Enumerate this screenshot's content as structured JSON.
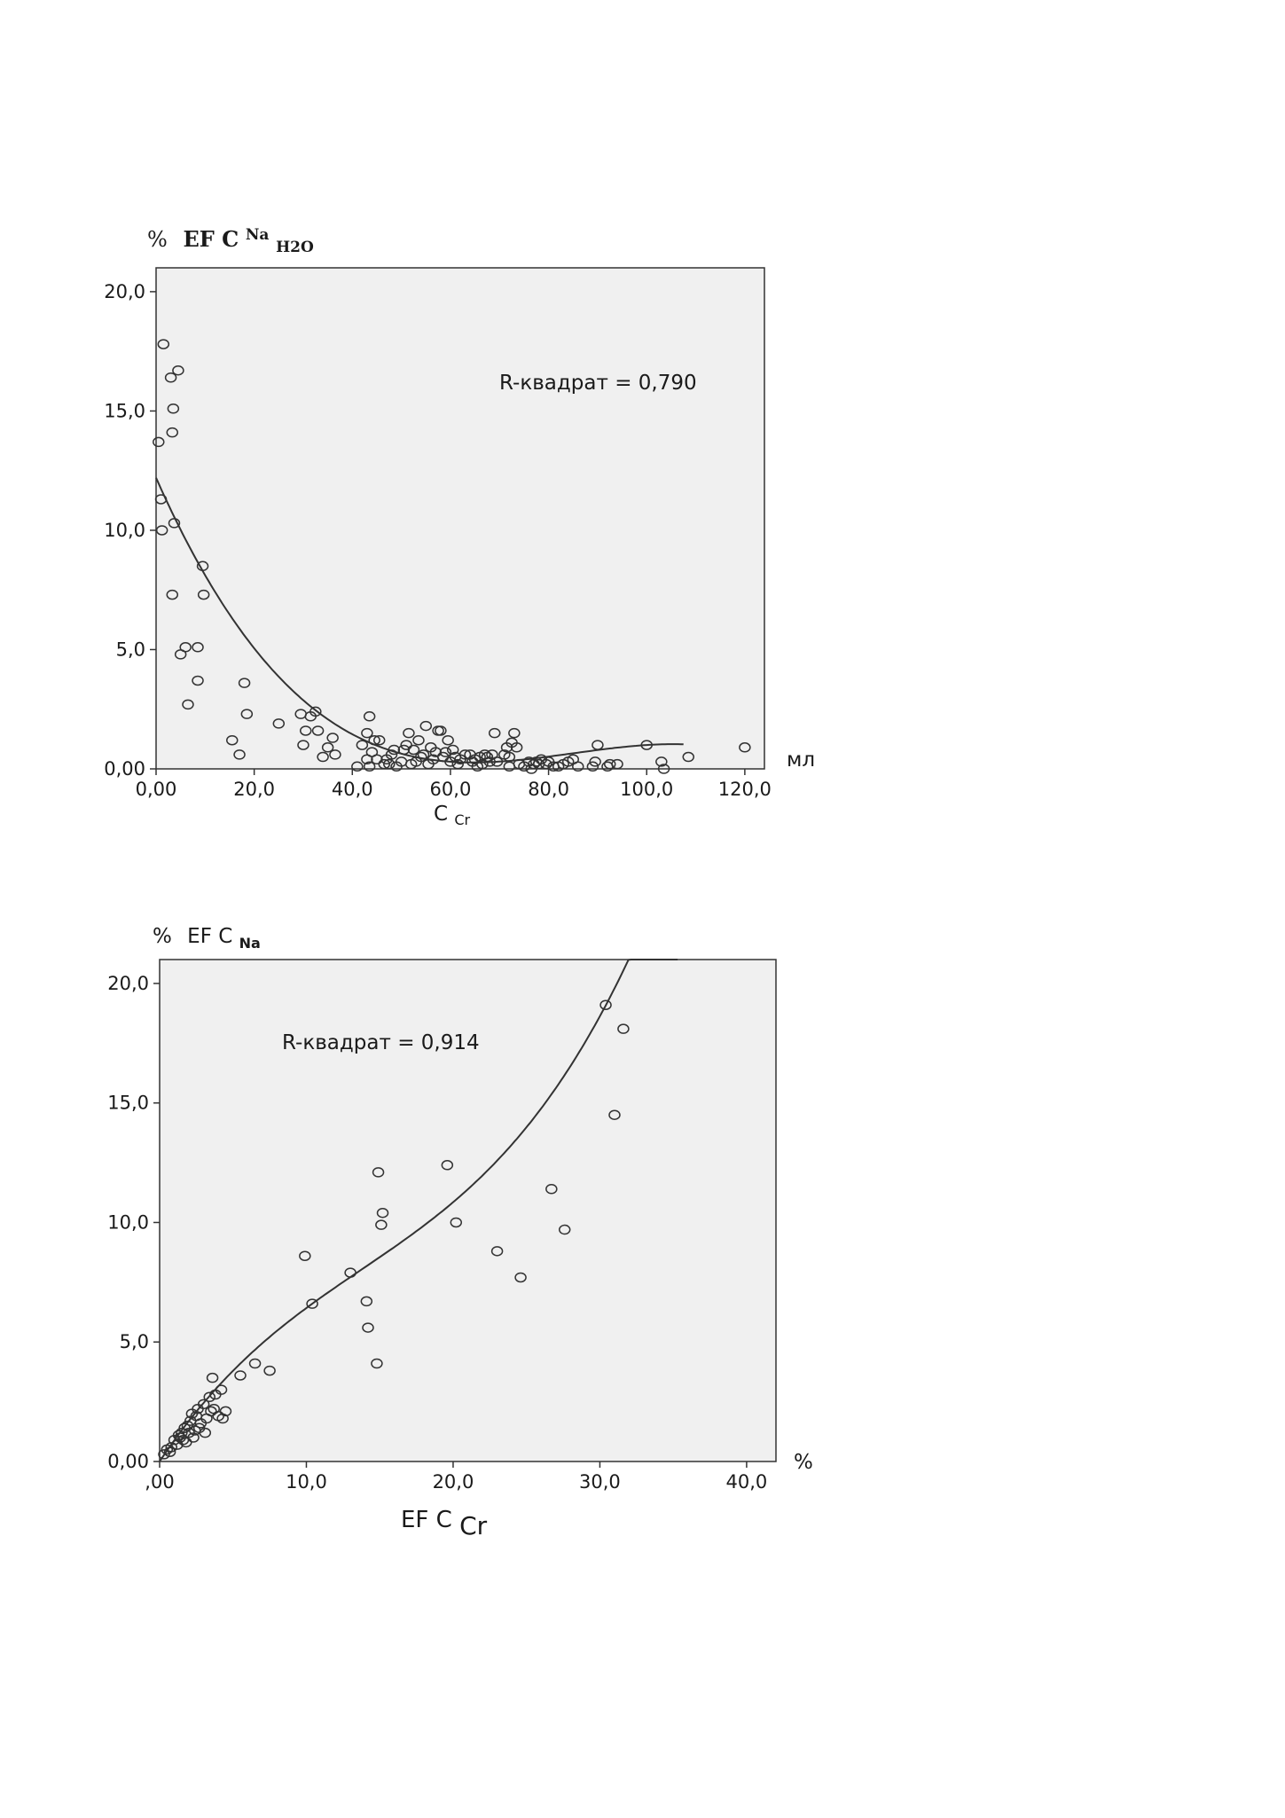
{
  "chart_data": [
    {
      "type": "scatter",
      "ylabel_prefix": "%",
      "ylabel_main": "EF C",
      "ylabel_sup": "Na",
      "ylabel_sub": "H2O",
      "xlabel_main": "C",
      "xlabel_sub": "Cr",
      "x_unit": "мл",
      "annotation": "R-квадрат = 0,790",
      "xlim": [
        0,
        124
      ],
      "ylim": [
        0,
        21
      ],
      "x_ticks": [
        0,
        20,
        40,
        60,
        80,
        100,
        120
      ],
      "x_tick_labels": [
        "0,00",
        "20,0",
        "40,0",
        "60,0",
        "80,0",
        "100,0",
        "120,0"
      ],
      "y_ticks": [
        0,
        5,
        10,
        15,
        20
      ],
      "y_tick_labels": [
        "0,00",
        "5,0",
        "10,0",
        "15,0",
        "20,0"
      ],
      "background": "#f0f0f0",
      "fit": {
        "kind": "cubic",
        "coef": [
          12.2,
          -0.464,
          0.00579,
          -2.27e-05
        ],
        "x_range": [
          0,
          107.5
        ]
      },
      "points": [
        [
          0.5,
          13.7
        ],
        [
          1.5,
          17.8
        ],
        [
          1,
          11.3
        ],
        [
          1.2,
          10
        ],
        [
          3,
          16.4
        ],
        [
          4.5,
          16.7
        ],
        [
          3.5,
          15.1
        ],
        [
          3.3,
          14.1
        ],
        [
          3.7,
          10.3
        ],
        [
          3.3,
          7.3
        ],
        [
          5,
          4.8
        ],
        [
          6,
          5.1
        ],
        [
          8.5,
          5.1
        ],
        [
          9.5,
          8.5
        ],
        [
          9.7,
          7.3
        ],
        [
          6.5,
          2.7
        ],
        [
          8.5,
          3.7
        ],
        [
          18,
          3.6
        ],
        [
          18.5,
          2.3
        ],
        [
          15.5,
          1.2
        ],
        [
          17,
          0.6
        ],
        [
          25,
          1.9
        ],
        [
          29.5,
          2.3
        ],
        [
          31.5,
          2.2
        ],
        [
          32.5,
          2.4
        ],
        [
          30,
          1
        ],
        [
          30.5,
          1.6
        ],
        [
          33,
          1.6
        ],
        [
          34,
          0.5
        ],
        [
          35,
          0.9
        ],
        [
          36,
          1.3
        ],
        [
          36.5,
          0.6
        ],
        [
          42,
          1
        ],
        [
          43,
          1.5
        ],
        [
          44,
          0.7
        ],
        [
          44.5,
          1.2
        ],
        [
          43,
          0.4
        ],
        [
          45,
          0.4
        ],
        [
          43.5,
          0.1
        ],
        [
          41,
          0.1
        ],
        [
          43.5,
          2.2
        ],
        [
          45.5,
          1.2
        ],
        [
          47,
          0.4
        ],
        [
          48,
          0.6
        ],
        [
          48.5,
          0.8
        ],
        [
          46.5,
          0.2
        ],
        [
          47.5,
          0.2
        ],
        [
          49,
          0.1
        ],
        [
          50,
          0.3
        ],
        [
          50.5,
          0.8
        ],
        [
          51,
          1
        ],
        [
          51.5,
          1.5
        ],
        [
          52,
          0.2
        ],
        [
          52.5,
          0.8
        ],
        [
          53,
          0.3
        ],
        [
          53.5,
          1.2
        ],
        [
          54,
          0.5
        ],
        [
          54.5,
          0.6
        ],
        [
          55,
          1.8
        ],
        [
          55.5,
          0.2
        ],
        [
          56,
          0.9
        ],
        [
          56.5,
          0.4
        ],
        [
          57,
          0.7
        ],
        [
          57.5,
          1.6
        ],
        [
          58,
          1.6
        ],
        [
          58.5,
          0.5
        ],
        [
          59,
          0.7
        ],
        [
          59.5,
          1.2
        ],
        [
          60,
          0.3
        ],
        [
          60.5,
          0.8
        ],
        [
          61,
          0.5
        ],
        [
          61.5,
          0.2
        ],
        [
          62,
          0.4
        ],
        [
          63,
          0.6
        ],
        [
          64,
          0.6
        ],
        [
          64.5,
          0.3
        ],
        [
          65,
          0.4
        ],
        [
          65.5,
          0.1
        ],
        [
          66,
          0.5
        ],
        [
          66.5,
          0.2
        ],
        [
          67,
          0.6
        ],
        [
          67.5,
          0.5
        ],
        [
          68,
          0.3
        ],
        [
          68.5,
          0.6
        ],
        [
          69,
          1.5
        ],
        [
          69.5,
          0.3
        ],
        [
          71,
          0.6
        ],
        [
          71.5,
          0.9
        ],
        [
          72,
          0.5
        ],
        [
          72.5,
          1.1
        ],
        [
          73,
          1.5
        ],
        [
          73.5,
          0.9
        ],
        [
          72,
          0.1
        ],
        [
          74,
          0.2
        ],
        [
          75,
          0.1
        ],
        [
          76,
          0.3
        ],
        [
          76.5,
          0
        ],
        [
          77,
          0.2
        ],
        [
          77.5,
          0.3
        ],
        [
          78,
          0.2
        ],
        [
          78.5,
          0.4
        ],
        [
          79.5,
          0.2
        ],
        [
          80,
          0.3
        ],
        [
          81,
          0.1
        ],
        [
          82,
          0.1
        ],
        [
          83,
          0.2
        ],
        [
          84,
          0.3
        ],
        [
          85,
          0.4
        ],
        [
          86,
          0.1
        ],
        [
          89,
          0.1
        ],
        [
          89.5,
          0.3
        ],
        [
          90,
          1
        ],
        [
          92,
          0.1
        ],
        [
          92.5,
          0.2
        ],
        [
          94,
          0.2
        ],
        [
          100,
          1
        ],
        [
          103,
          0.3
        ],
        [
          103.5,
          0
        ],
        [
          108.5,
          0.5
        ],
        [
          120,
          0.9
        ]
      ]
    },
    {
      "type": "scatter",
      "ylabel_prefix": "%",
      "ylabel_main": "EF C",
      "ylabel_sub": "Na",
      "xlabel_main": "EF C",
      "xlabel_sub": "Cr",
      "x_unit": "%",
      "annotation": "R-квадрат = 0,914",
      "xlim": [
        0,
        42
      ],
      "ylim": [
        0,
        21
      ],
      "x_ticks": [
        0,
        10,
        20,
        30,
        40
      ],
      "x_tick_labels": [
        ",00",
        "10,0",
        "20,0",
        "30,0",
        "40,0"
      ],
      "y_ticks": [
        0,
        5,
        10,
        15,
        20
      ],
      "y_tick_labels": [
        "0,00",
        "5,0",
        "10,0",
        "15,0",
        "20,0"
      ],
      "background": "#f0f0f0",
      "fit": {
        "kind": "cubic",
        "coef": [
          0,
          0.92,
          -0.0367,
          0.000891
        ],
        "x_range": [
          0,
          35.3
        ]
      },
      "points": [
        [
          0.3,
          0.3
        ],
        [
          0.5,
          0.5
        ],
        [
          0.7,
          0.4
        ],
        [
          0.8,
          0.6
        ],
        [
          1,
          0.9
        ],
        [
          1.2,
          0.7
        ],
        [
          1.3,
          1.1
        ],
        [
          1.5,
          1.2
        ],
        [
          1.6,
          0.9
        ],
        [
          1.7,
          1.4
        ],
        [
          1.9,
          1.5
        ],
        [
          2,
          1.2
        ],
        [
          2.1,
          1.7
        ],
        [
          2.2,
          2
        ],
        [
          2.4,
          1.3
        ],
        [
          2.5,
          1.9
        ],
        [
          2.6,
          2.2
        ],
        [
          2.8,
          1.6
        ],
        [
          3,
          2.4
        ],
        [
          3.2,
          1.8
        ],
        [
          3.4,
          2.7
        ],
        [
          3.5,
          2.1
        ],
        [
          3.7,
          2.2
        ],
        [
          3.8,
          2.8
        ],
        [
          4,
          1.9
        ],
        [
          4.2,
          3
        ],
        [
          4.5,
          2.1
        ],
        [
          4.3,
          1.8
        ],
        [
          1.4,
          1
        ],
        [
          1.8,
          0.8
        ],
        [
          2.3,
          1
        ],
        [
          2.7,
          1.4
        ],
        [
          3.1,
          1.2
        ],
        [
          3.6,
          3.5
        ],
        [
          5.5,
          3.6
        ],
        [
          6.5,
          4.1
        ],
        [
          7.5,
          3.8
        ],
        [
          9.9,
          8.6
        ],
        [
          10.4,
          6.6
        ],
        [
          13,
          7.9
        ],
        [
          14.1,
          6.7
        ],
        [
          14.2,
          5.6
        ],
        [
          14.8,
          4.1
        ],
        [
          14.9,
          12.1
        ],
        [
          15.1,
          9.9
        ],
        [
          15.2,
          10.4
        ],
        [
          19.6,
          12.4
        ],
        [
          20.2,
          10
        ],
        [
          23,
          8.8
        ],
        [
          24.6,
          7.7
        ],
        [
          26.7,
          11.4
        ],
        [
          27.6,
          9.7
        ],
        [
          30.4,
          19.1
        ],
        [
          31,
          14.5
        ],
        [
          31.6,
          18.1
        ]
      ]
    }
  ]
}
